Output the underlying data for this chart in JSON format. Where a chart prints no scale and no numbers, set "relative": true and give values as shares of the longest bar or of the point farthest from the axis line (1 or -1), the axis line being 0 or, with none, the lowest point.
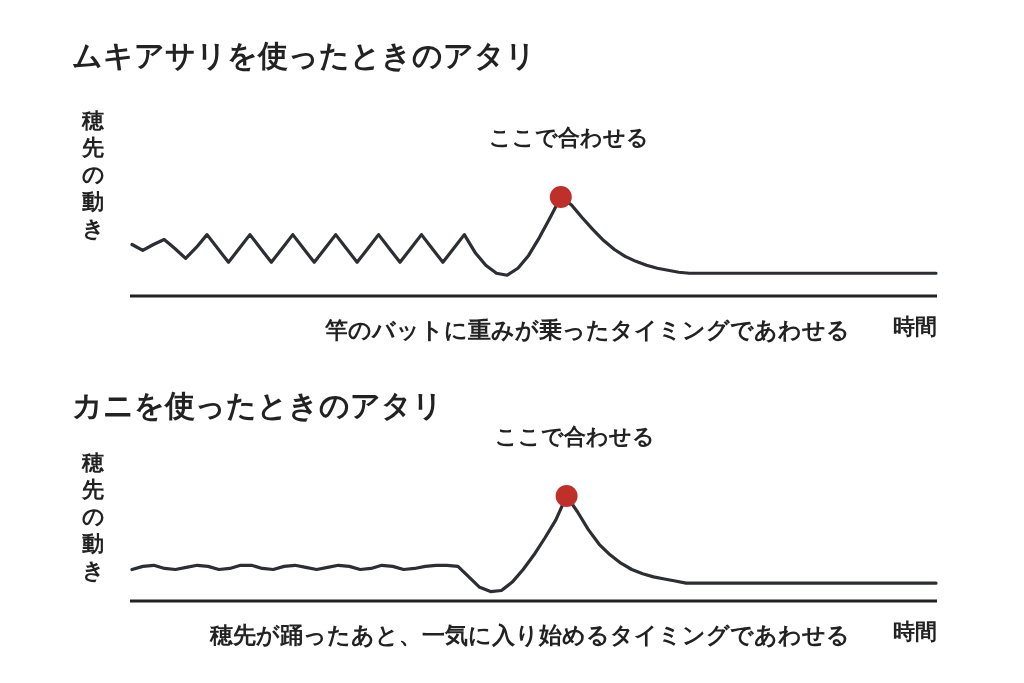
{
  "chart_data": [
    {
      "type": "line",
      "title": "ムキアサリを使ったときのアタリ",
      "ylabel": "穂先の動き",
      "xlabel": "時間",
      "relative": true,
      "annotations": [
        {
          "text": "ここで合わせる",
          "y": 1.0
        },
        "竿のバットに重みが乗ったタイミングであわせる"
      ],
      "categories": [
        null,
        null,
        null,
        null,
        null,
        null,
        null,
        null,
        null,
        null,
        null,
        null,
        null,
        null,
        null,
        null,
        null,
        null,
        null,
        null,
        null,
        null,
        null,
        null,
        null,
        null,
        null,
        null,
        null,
        null,
        null,
        null,
        null,
        null,
        null,
        null,
        null,
        null,
        null,
        null,
        null,
        null,
        null,
        null,
        null,
        null,
        null,
        null,
        null,
        null,
        null,
        null,
        null,
        null,
        null,
        null,
        null,
        null,
        null,
        null,
        null,
        null,
        null,
        null,
        null,
        null,
        null,
        null,
        null,
        null,
        null,
        null,
        null,
        null,
        null,
        null
      ],
      "series": [
        {
          "color": "#2b2f33",
          "values": [
            0.52,
            0.46,
            0.52,
            0.57,
            0.48,
            0.38,
            0.49,
            0.62,
            0.48,
            0.34,
            0.48,
            0.62,
            0.48,
            0.34,
            0.48,
            0.62,
            0.48,
            0.34,
            0.48,
            0.62,
            0.48,
            0.34,
            0.48,
            0.62,
            0.48,
            0.34,
            0.48,
            0.62,
            0.48,
            0.34,
            0.48,
            0.62,
            0.44,
            0.31,
            0.23,
            0.21,
            0.28,
            0.41,
            0.59,
            0.79,
            1.0,
            0.92,
            0.79,
            0.67,
            0.56,
            0.47,
            0.4,
            0.35,
            0.31,
            0.28,
            0.26,
            0.24,
            0.23,
            0.23,
            0.23,
            0.23,
            0.23,
            0.23,
            0.23,
            0.23,
            0.23,
            0.23,
            0.23,
            0.23,
            0.23,
            0.23,
            0.23,
            0.23,
            0.23,
            0.23,
            0.23,
            0.23,
            0.23,
            0.23,
            0.23,
            0.23
          ]
        }
      ]
    },
    {
      "type": "line",
      "title": "カニを使ったときのアタリ",
      "ylabel": "穂先の動き",
      "xlabel": "時間",
      "relative": true,
      "annotations": [
        {
          "text": "ここで合わせる",
          "y": 1.0
        },
        "穂先が踊ったあと、一気に入り始めるタイミングであわせる"
      ],
      "categories": [
        null,
        null,
        null,
        null,
        null,
        null,
        null,
        null,
        null,
        null,
        null,
        null,
        null,
        null,
        null,
        null,
        null,
        null,
        null,
        null,
        null,
        null,
        null,
        null,
        null,
        null,
        null,
        null,
        null,
        null,
        null,
        null,
        null,
        null,
        null,
        null,
        null,
        null,
        null,
        null,
        null,
        null,
        null,
        null,
        null,
        null,
        null,
        null,
        null,
        null,
        null,
        null,
        null,
        null,
        null,
        null,
        null,
        null,
        null,
        null,
        null,
        null,
        null,
        null,
        null,
        null,
        null,
        null,
        null,
        null,
        null,
        null,
        null,
        null,
        null
      ],
      "series": [
        {
          "color": "#2b2f33",
          "values": [
            0.3,
            0.33,
            0.34,
            0.31,
            0.3,
            0.32,
            0.34,
            0.33,
            0.3,
            0.31,
            0.34,
            0.34,
            0.31,
            0.3,
            0.33,
            0.34,
            0.32,
            0.3,
            0.32,
            0.34,
            0.33,
            0.3,
            0.31,
            0.34,
            0.33,
            0.3,
            0.31,
            0.33,
            0.34,
            0.34,
            0.33,
            0.23,
            0.13,
            0.09,
            0.1,
            0.18,
            0.3,
            0.44,
            0.6,
            0.77,
            1.0,
            0.85,
            0.68,
            0.54,
            0.44,
            0.36,
            0.3,
            0.26,
            0.23,
            0.21,
            0.19,
            0.17,
            0.17,
            0.17,
            0.17,
            0.17,
            0.17,
            0.17,
            0.17,
            0.17,
            0.17,
            0.17,
            0.17,
            0.17,
            0.17,
            0.17,
            0.17,
            0.17,
            0.17,
            0.17,
            0.17,
            0.17,
            0.17,
            0.17,
            0.17
          ]
        }
      ]
    }
  ]
}
